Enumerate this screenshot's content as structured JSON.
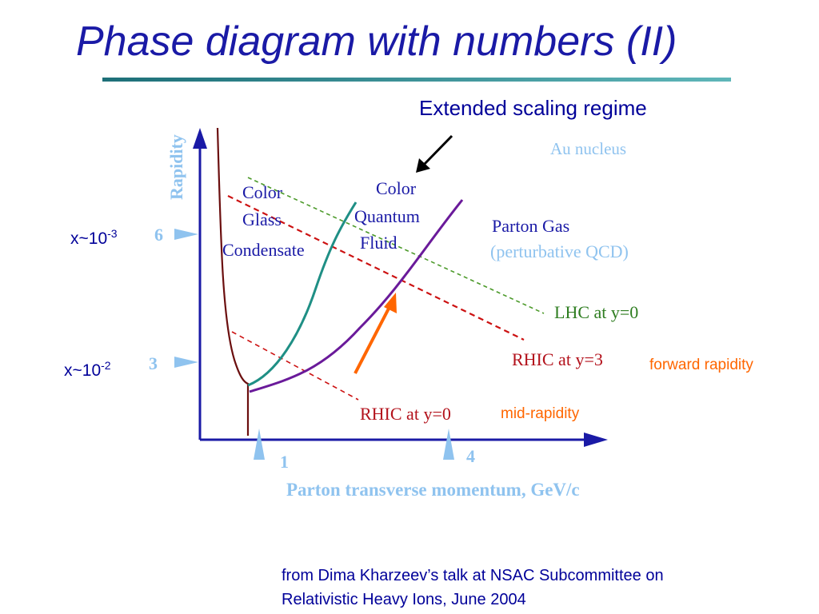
{
  "title": "Phase diagram with numbers (II)",
  "annotations": {
    "extended_scaling": "Extended scaling regime",
    "x_upper_base": "x~10",
    "x_upper_exp": "-3",
    "x_lower_base": "x~10",
    "x_lower_exp": "-2",
    "forward_rapidity": "forward rapidity",
    "mid_rapidity": "mid-rapidity"
  },
  "diagram": {
    "y_axis_label": "Rapidity",
    "x_axis_label": "Parton transverse momentum, GeV/c",
    "y_ticks": [
      "6",
      "3"
    ],
    "x_ticks": [
      "1",
      "4"
    ],
    "regions": {
      "au_nucleus": "Au nucleus",
      "cgc_line1": "Color",
      "cgc_line2": "Glass",
      "cgc_line3": "Condensate",
      "cqf_line1": "Color",
      "cqf_line2": "Quantum",
      "cqf_line3": "Fluid",
      "parton_gas": "Parton Gas",
      "perturbative": "(perturbative QCD)"
    },
    "lines": {
      "lhc": "LHC at y=0",
      "rhic_y3": "RHIC at y=3",
      "rhic_y0": "RHIC at y=0"
    },
    "colors": {
      "axis": "#1a1aa6",
      "tick_marker": "#8fc3ef",
      "boundary_red": "#6b0f0f",
      "teal_curve": "#1f8f85",
      "purple_curve": "#6a1a9a",
      "dashed_red": "#cc1111",
      "dashed_green": "#4c9a2a",
      "orange_arrow": "#ff6600",
      "label_lightblue": "#6fa8dc"
    }
  },
  "credit": {
    "line1": "from Dima Kharzeev’s talk at NSAC Subcommittee on",
    "line2": "Relativistic Heavy Ions, June 2004"
  }
}
